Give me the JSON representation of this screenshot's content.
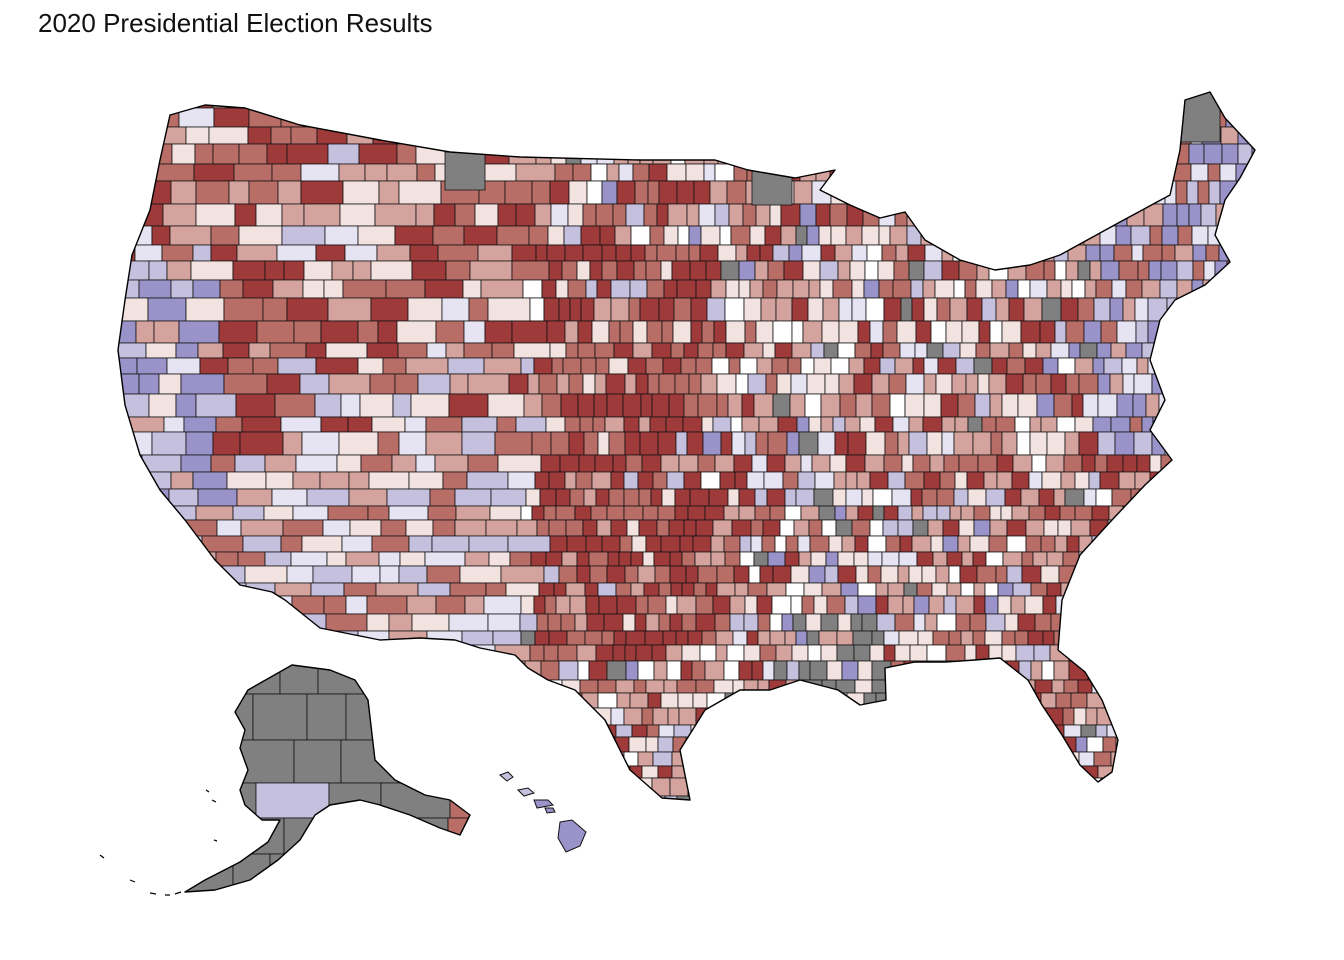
{
  "title": "2020 Presidential Election Results",
  "colors": {
    "strong_rep": "#9e3a3a",
    "rep": "#b86d66",
    "lean_rep": "#d4a39e",
    "slight_rep": "#f2e2e0",
    "even": "#ffffff",
    "slight_dem": "#e6e4f2",
    "lean_dem": "#c4c0de",
    "dem": "#9a93c9",
    "strong_dem": "#6f66ad",
    "no_data": "#808080"
  }
}
